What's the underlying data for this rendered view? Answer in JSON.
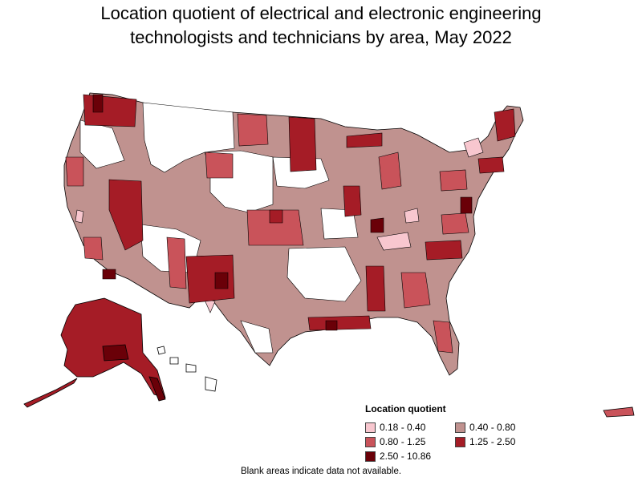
{
  "map": {
    "title_line1": "Location quotient of electrical and electronic engineering",
    "title_line2": "technologists and technicians by area, May 2022"
  },
  "legend": {
    "title": "Location quotient",
    "items": [
      {
        "label": "0.18 - 0.40",
        "color": "#f8c7cf"
      },
      {
        "label": "0.40 - 0.80",
        "color": "#c0928f"
      },
      {
        "label": "0.80 - 1.25",
        "color": "#c9535a"
      },
      {
        "label": "1.25 - 2.50",
        "color": "#a51c26"
      },
      {
        "label": "2.50 - 10.86",
        "color": "#6a0008"
      }
    ]
  },
  "footnote": "Blank areas indicate data not available."
}
